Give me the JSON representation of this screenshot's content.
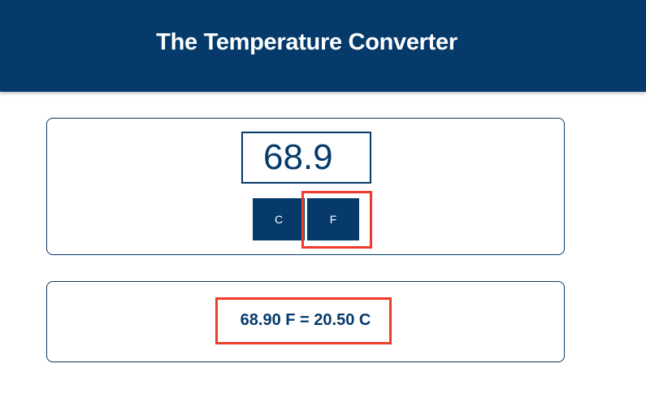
{
  "header": {
    "title": "The Temperature Converter"
  },
  "converter": {
    "input_value": "68.9",
    "buttons": {
      "celsius_label": "C",
      "fahrenheit_label": "F"
    }
  },
  "result": {
    "text": "68.90 F = 20.50 C"
  },
  "colors": {
    "primary": "#053a6b",
    "highlight": "#f03a2a",
    "background": "#ffffff"
  }
}
